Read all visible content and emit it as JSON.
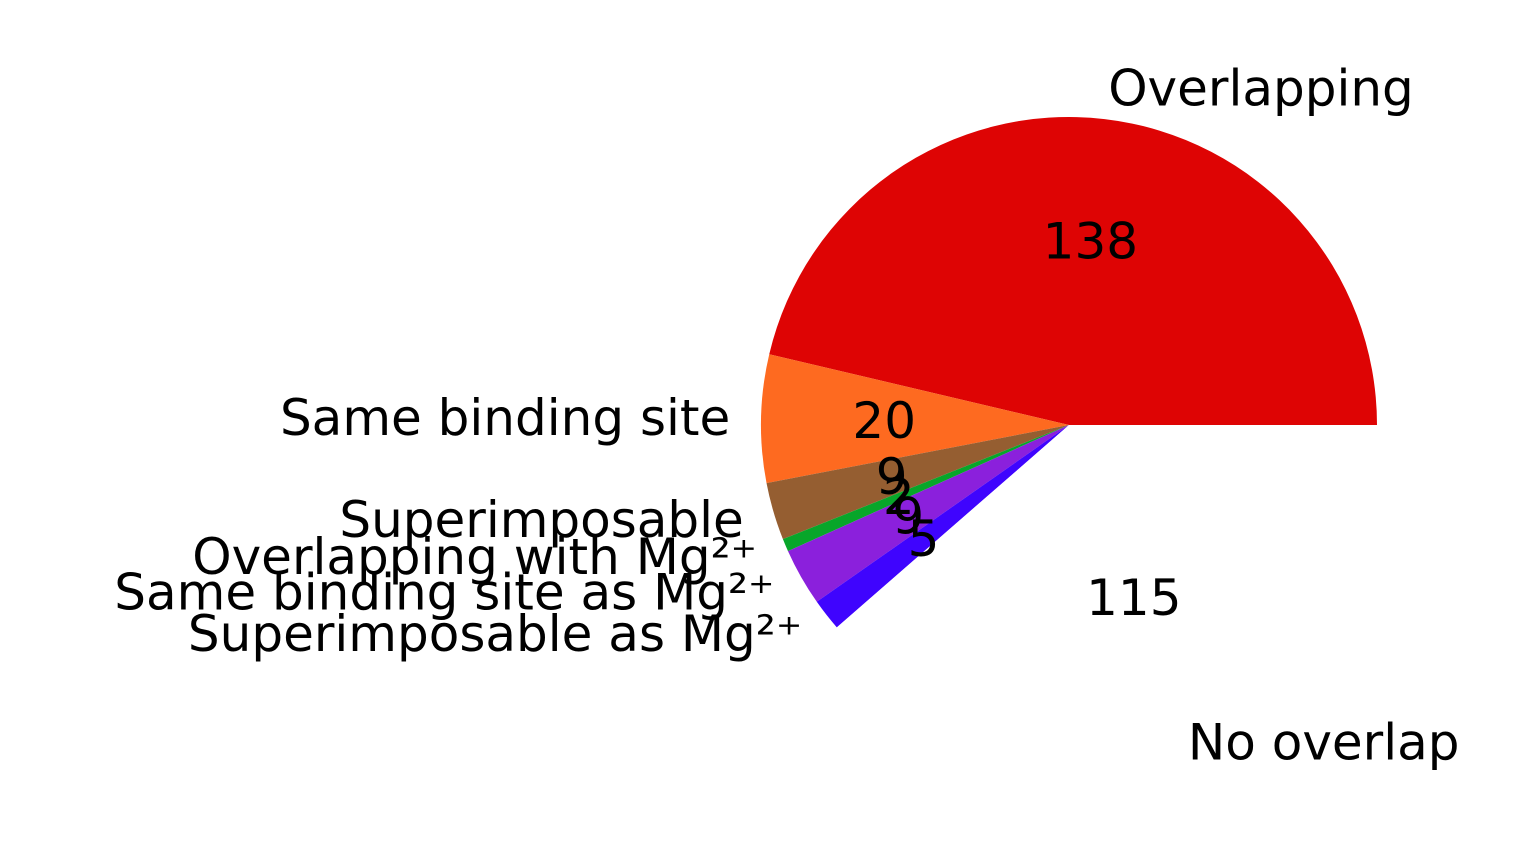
{
  "chart_data": {
    "type": "pie",
    "title": "",
    "slices": [
      {
        "label": "Overlapping",
        "value": 138,
        "color": "#de0404"
      },
      {
        "label": "Same binding site",
        "value": 20,
        "color": "#fe6a20"
      },
      {
        "label": "Superimposable",
        "value": 9,
        "color": "#955e31"
      },
      {
        "label": "Overlapping with Mg²⁺",
        "value": 2,
        "color": "#08a62a"
      },
      {
        "label": "Same binding site as Mg²⁺",
        "value": 9,
        "color": "#8b20dc"
      },
      {
        "label": "Superimposable as Mg²⁺",
        "value": 5,
        "color": "#3f04fe"
      },
      {
        "label": "No overlap",
        "value": 115,
        "color": "#ffffff"
      }
    ]
  }
}
